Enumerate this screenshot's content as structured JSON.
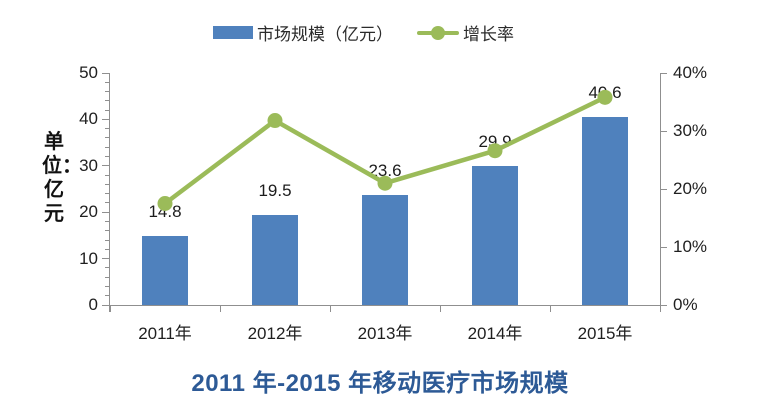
{
  "chart_data": {
    "type": "combo-bar-line",
    "title": "2011 年-2015 年移动医疗市场规模",
    "categories": [
      "2011年",
      "2012年",
      "2013年",
      "2014年",
      "2015年"
    ],
    "series": [
      {
        "name": "市场规模（亿元）",
        "type": "bar",
        "axis": "left",
        "values": [
          14.8,
          19.5,
          23.6,
          29.9,
          40.6
        ],
        "data_labels": [
          "14.8",
          "19.5",
          "23.6",
          "29.9",
          "40.6"
        ],
        "color": "#4f81bd"
      },
      {
        "name": "增长率",
        "type": "line",
        "axis": "right",
        "values": [
          17.5,
          31.8,
          21.0,
          26.6,
          35.8
        ],
        "color": "#9bbb59"
      }
    ],
    "left_axis": {
      "label": "单位：亿元",
      "min": 0,
      "max": 50,
      "tick_labels": [
        "0",
        "10",
        "20",
        "30",
        "40",
        "50"
      ],
      "minor_step": 2
    },
    "right_axis": {
      "min": 0,
      "max": 40,
      "tick_labels": [
        "0%",
        "10%",
        "20%",
        "30%",
        "40%"
      ]
    },
    "grid": "off",
    "legend_position": "top",
    "colors": {
      "bar": "#4f81bd",
      "line": "#9bbb59",
      "title": "#2d5a96",
      "axis": "#8f8f8f",
      "text": "#1f1f1f"
    }
  }
}
